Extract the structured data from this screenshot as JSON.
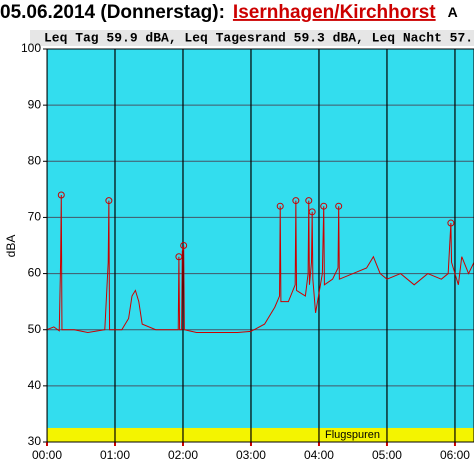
{
  "chart_data": {
    "type": "line",
    "title": "05.06.2014 (Donnerstag):",
    "location": "Isernhagen/Kirchhorst",
    "title_tail": "A",
    "subtitle": "Leq Tag 59.9 dBA, Leq Tagesrand 59.3 dBA, Leq Nacht 57.",
    "ylabel": "dBA",
    "band_label": "Flugspuren",
    "band_range": [
      30,
      32.5
    ],
    "x": [
      0,
      0.1,
      0.18,
      0.2,
      0.21,
      0.22,
      0.4,
      0.6,
      0.85,
      0.9,
      0.91,
      0.92,
      1.1,
      1.2,
      1.25,
      1.3,
      1.35,
      1.4,
      1.6,
      1.8,
      1.93,
      1.94,
      1.95,
      1.98,
      1.99,
      2.01,
      2.02,
      2.2,
      2.5,
      2.8,
      3.0,
      3.2,
      3.35,
      3.42,
      3.43,
      3.44,
      3.55,
      3.65,
      3.66,
      3.67,
      3.8,
      3.84,
      3.85,
      3.86,
      3.89,
      3.9,
      3.91,
      3.95,
      4.05,
      4.07,
      4.08,
      4.2,
      4.28,
      4.29,
      4.3,
      4.5,
      4.7,
      4.8,
      4.9,
      5.0,
      5.2,
      5.4,
      5.6,
      5.8,
      5.9,
      5.94,
      5.95,
      6.05,
      6.1,
      6.2,
      6.28
    ],
    "series": [
      {
        "color": "#cc0000",
        "values": [
          50,
          50.5,
          49.8,
          62,
          74,
          50,
          50,
          49.5,
          50,
          62,
          73,
          50,
          50,
          52,
          56,
          57,
          55,
          51,
          50,
          50,
          50,
          63,
          50,
          50,
          64,
          65,
          50,
          49.5,
          49.5,
          49.5,
          49.7,
          51,
          54,
          56,
          72,
          55,
          55,
          58,
          73,
          57,
          56,
          60,
          73,
          58,
          62,
          71,
          59,
          53,
          60,
          72,
          58,
          59,
          61,
          72,
          59,
          60,
          61,
          63,
          60,
          59,
          60,
          58,
          60,
          59,
          60,
          69,
          62,
          58,
          63,
          60,
          62
        ]
      }
    ],
    "markers": {
      "x": [
        0.21,
        0.91,
        1.94,
        2.01,
        3.43,
        3.66,
        3.85,
        3.9,
        4.07,
        4.29,
        5.94
      ],
      "values": [
        74,
        73,
        63,
        65,
        72,
        73,
        73,
        71,
        72,
        72,
        69
      ]
    },
    "xlim": [
      0,
      6.28
    ],
    "ylim": [
      30,
      100
    ],
    "xticks": [
      {
        "value": 0,
        "label": "00:00"
      },
      {
        "value": 1,
        "label": "01:00"
      },
      {
        "value": 2,
        "label": "02:00"
      },
      {
        "value": 3,
        "label": "03:00"
      },
      {
        "value": 4,
        "label": "04:00"
      },
      {
        "value": 5,
        "label": "05:00"
      },
      {
        "value": 6,
        "label": "06:00"
      }
    ],
    "yticks": [
      30,
      40,
      50,
      60,
      70,
      80,
      90,
      100
    ],
    "grid": true,
    "plot_color": "#33ddee",
    "band_color": "#f4f400"
  }
}
